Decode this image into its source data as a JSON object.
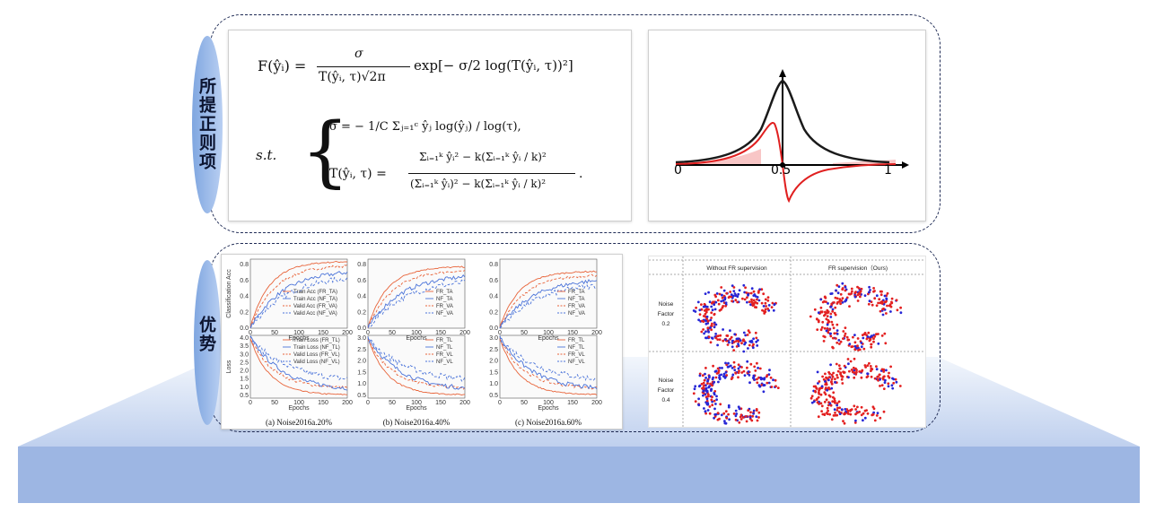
{
  "side_labels": {
    "top": "所提正则项",
    "bottom": "优势"
  },
  "formula": {
    "line1_lhs": "F(ŷᵢ) =",
    "line1_num": "σ",
    "line1_den": "T(ŷᵢ, τ)√2π",
    "line1_rhs": "exp[− σ/2 log(T(ŷᵢ, τ))²]",
    "st": "s.t.",
    "sigma_line": "σ = − 1/C Σⱼ₌₁ᶜ ŷⱼ log(ŷⱼ) / log(τ),",
    "t_lhs": "T(ŷᵢ, τ) =",
    "t_num": "Σᵢ₌₁ᵏ ŷᵢ² − k(Σᵢ₌₁ᵏ ŷᵢ / k)²",
    "t_den": "(Σᵢ₌₁ᵏ ŷᵢ)² − k(Σᵢ₌₁ᵏ ŷᵢ / k)²",
    "t_end": "."
  },
  "curve_plot": {
    "x_ticks": [
      "0",
      "0.5",
      "1"
    ]
  },
  "training_curves": {
    "xlabel": "Epochs",
    "ylabel_top": "Classification Acc",
    "ylabel_bottom": "Loss",
    "x_ticks": [
      "0",
      "50",
      "100",
      "150",
      "200"
    ],
    "acc_ticks_a": [
      "0.0",
      "0.2",
      "0.4",
      "0.6",
      "0.8"
    ],
    "acc_ticks_bc": [
      "0.0",
      "0.2",
      "0.4",
      "0.6",
      "0.8"
    ],
    "loss_ticks_a": [
      "0.5",
      "1.0",
      "1.5",
      "2.0",
      "2.5",
      "3.0",
      "3.5",
      "4.0"
    ],
    "loss_ticks_b": [
      "0.5",
      "1.0",
      "1.5",
      "2.0",
      "2.5",
      "3.0"
    ],
    "loss_ticks_c": [
      "0.5",
      "1.0",
      "1.5",
      "2.0",
      "2.5",
      "3.0"
    ],
    "legend_acc_a": [
      "Train Acc (FR_TA)",
      "Train Acc (NF_TA)",
      "Valid Acc (FR_VA)",
      "Valid Acc (NF_VA)"
    ],
    "legend_loss_a": [
      "Train Loss (FR_TL)",
      "Train Loss (NF_TL)",
      "Valid Loss (FR_VL)",
      "Valid Loss (NF_VL)"
    ],
    "legend_acc_bc": [
      "FR_TA",
      "NF_TA",
      "FR_VA",
      "NF_VA"
    ],
    "legend_loss_bc": [
      "FR_TL",
      "NF_TL",
      "FR_VL",
      "NF_VL"
    ],
    "captions": [
      "(a) Noise2016a.20%",
      "(b) Noise2016a.40%",
      "(c) Noise2016a.60%"
    ],
    "colors": {
      "fr": "#e8643a",
      "nf": "#4a73d9"
    }
  },
  "tsne": {
    "col_headers": [
      "Without FR supervision",
      "FR supervision（Ours)"
    ],
    "row_labels": [
      {
        "line1": "Noise",
        "line2": "Factor",
        "line3": "0.2"
      },
      {
        "line1": "Noise",
        "line2": "Factor",
        "line3": "0.4"
      }
    ],
    "colors": {
      "red": "#e32020",
      "blue": "#2626d6"
    }
  },
  "colors": {
    "border": "#1f2b55",
    "tab": "#8fb0e6",
    "floor": "#9db6e3"
  }
}
